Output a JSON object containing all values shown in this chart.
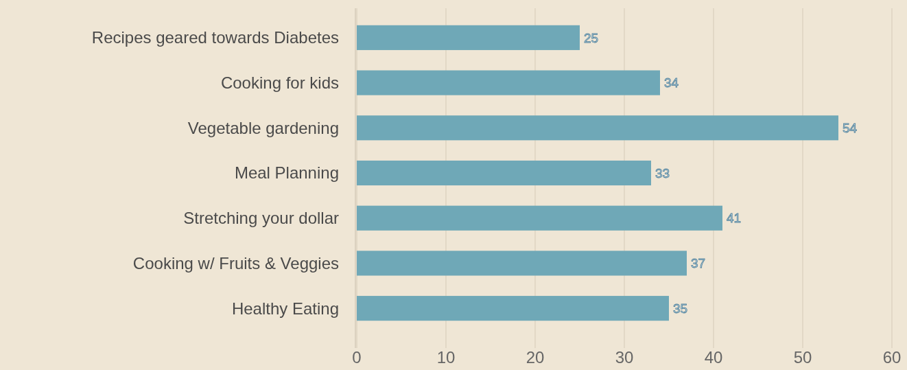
{
  "chart_data": {
    "type": "bar",
    "orientation": "horizontal",
    "categories": [
      "Recipes geared towards Diabetes",
      "Cooking for kids",
      "Vegetable gardening",
      "Meal Planning",
      "Stretching your dollar",
      "Cooking w/ Fruits & Veggies",
      "Healthy Eating"
    ],
    "values": [
      25,
      34,
      54,
      33,
      41,
      37,
      35
    ],
    "color": "#6fa8b7",
    "xlim": [
      0,
      60
    ],
    "xticks": [
      0,
      10,
      20,
      30,
      40,
      50,
      60
    ],
    "grid": "x",
    "data_labels": true
  }
}
